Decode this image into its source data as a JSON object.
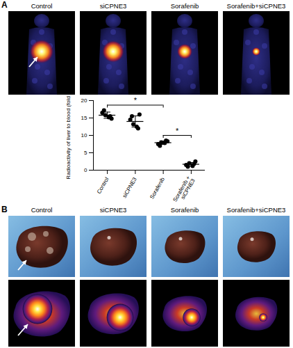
{
  "chart_data": {
    "type": "scatter",
    "y_label": "Radioactivity of liver to blood (folds)",
    "categories": [
      "Control",
      "siCPNE3",
      "Sorafenib",
      "Sorafenib + siCPNE3"
    ],
    "points": [
      [
        16.5,
        15.8,
        15.2,
        14.8,
        17.2,
        15.5
      ],
      [
        14.5,
        13.2,
        12.5,
        16.0,
        15.5,
        12.0
      ],
      [
        7.5,
        8.0,
        7.8,
        8.3,
        7.0,
        8.5
      ],
      [
        1.5,
        2.0,
        1.2,
        2.5,
        1.0,
        1.8
      ]
    ],
    "means": [
      15.8,
      14.0,
      7.9,
      1.7
    ],
    "errors": [
      0.9,
      1.6,
      0.5,
      0.5
    ],
    "color": "#000000",
    "ylim": [
      0,
      20
    ],
    "yticks": [
      0,
      5,
      10,
      15,
      20
    ],
    "grid": false,
    "annotations": [
      {
        "from": "Control",
        "to": "Sorafenib",
        "text": "*"
      },
      {
        "from": "Sorafenib",
        "to": "Sorafenib + siCPNE3",
        "text": "*"
      }
    ]
  },
  "figure": {
    "panels": [
      {
        "label": "A",
        "titles": [
          "Control",
          "siCPNE3",
          "Sorafenib",
          "Sorafenib+siCPNE3"
        ]
      },
      {
        "label": "B",
        "titles": [
          "Control",
          "siCPNE3",
          "Sorafenib",
          "Sorafenib+siCPNE3"
        ]
      }
    ]
  }
}
